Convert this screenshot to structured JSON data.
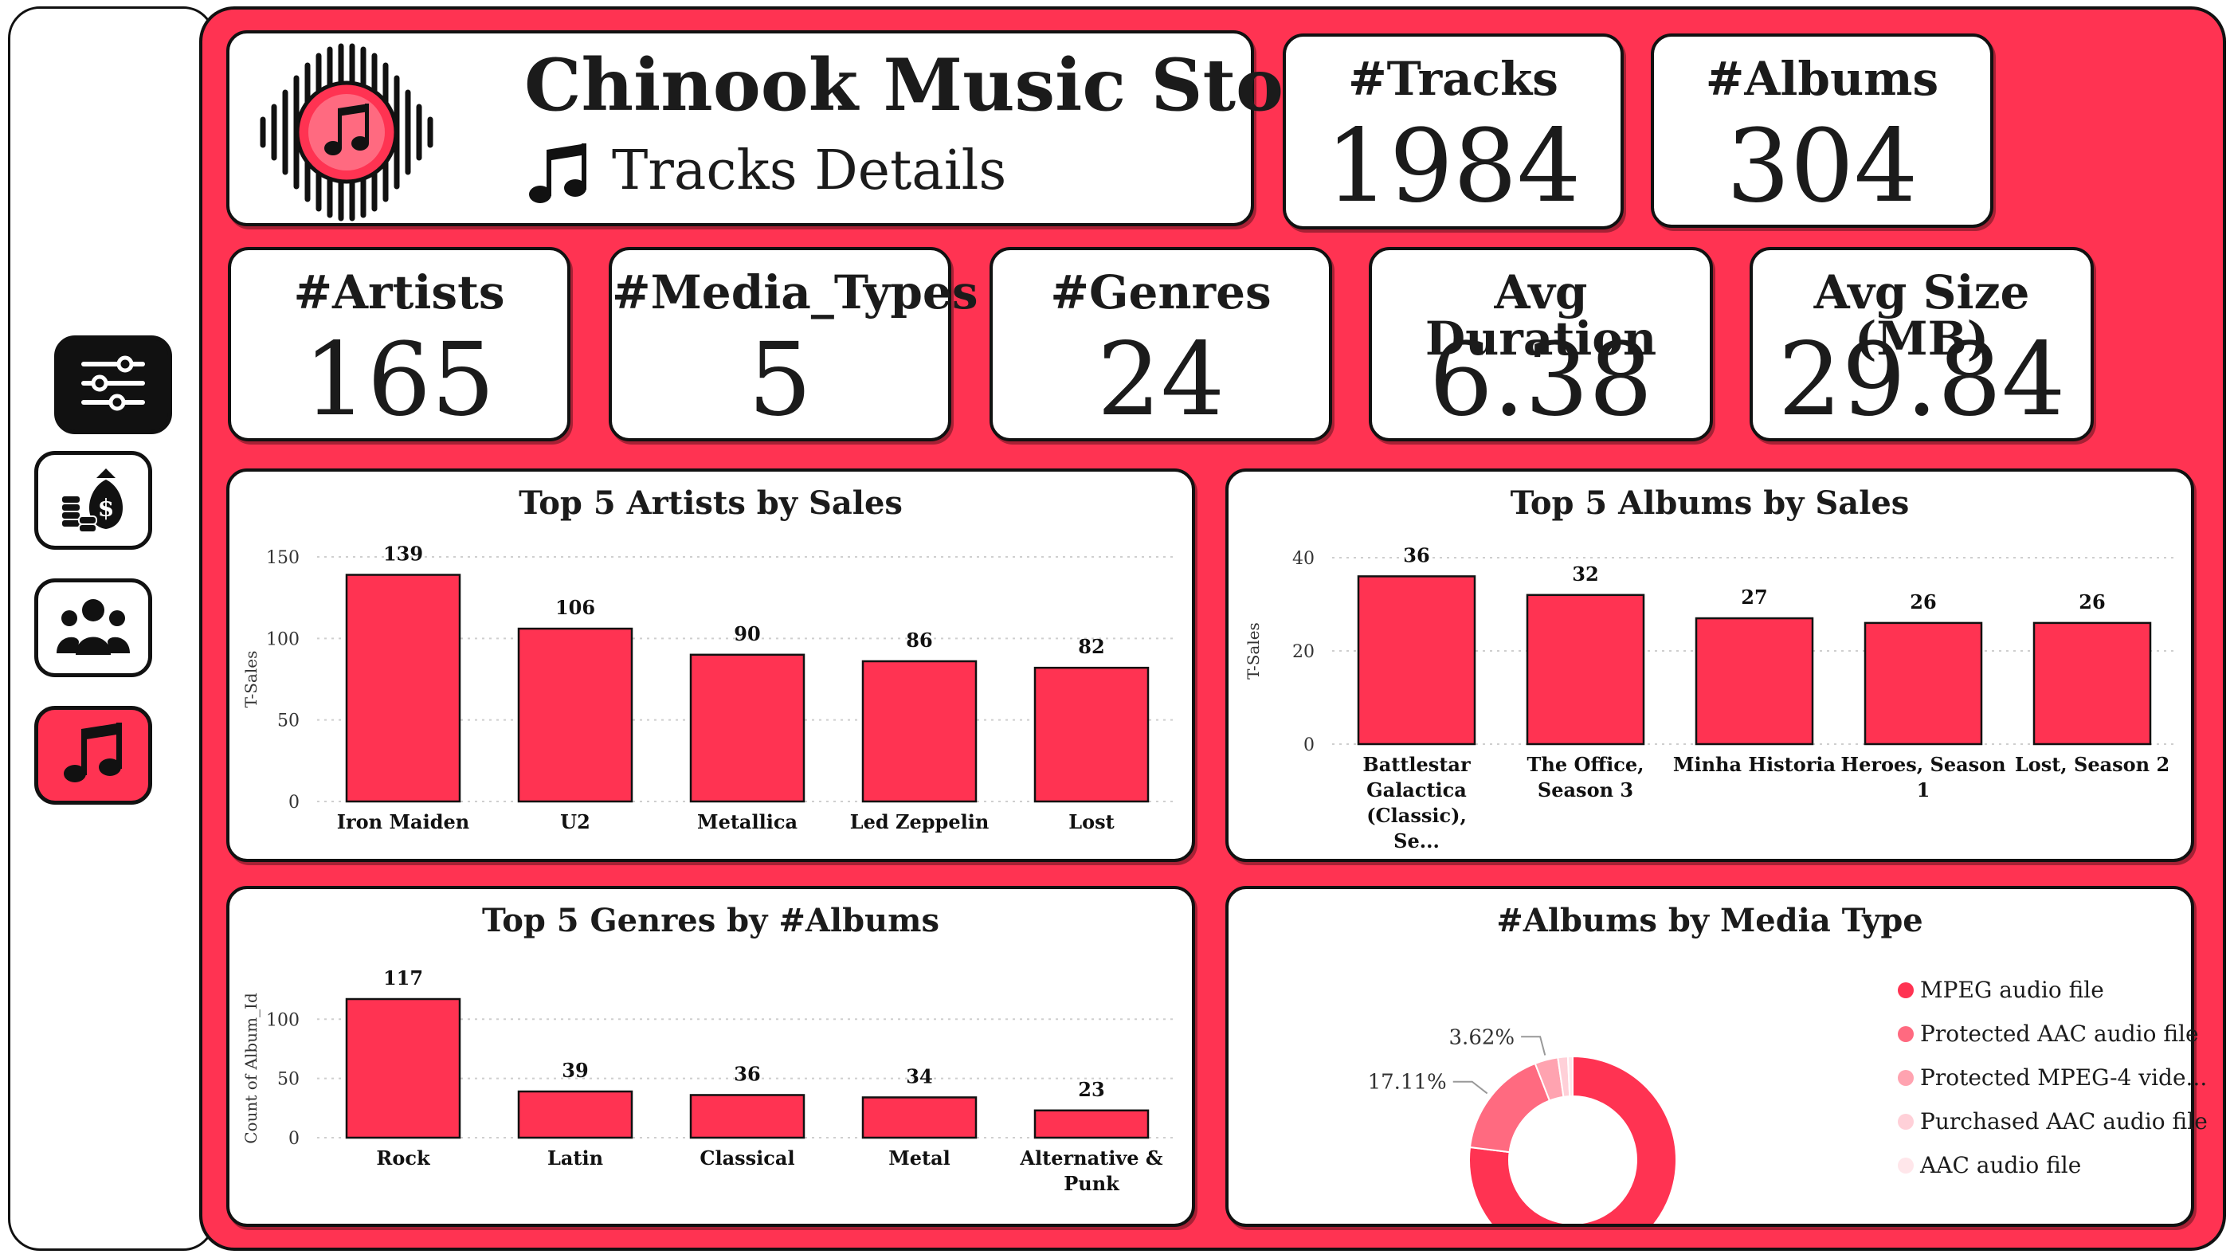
{
  "header": {
    "title": "Chinook Music Store",
    "subtitle": "Tracks Details"
  },
  "nav": [
    {
      "icon": "sliders-icon",
      "active": false
    },
    {
      "icon": "money-bag-icon",
      "active": false
    },
    {
      "icon": "people-icon",
      "active": false
    },
    {
      "icon": "music-note-icon",
      "active": true
    }
  ],
  "kpis": {
    "tracks": {
      "label": "#Tracks",
      "value": "1984"
    },
    "albums": {
      "label": "#Albums",
      "value": "304"
    },
    "artists": {
      "label": "#Artists",
      "value": "165"
    },
    "media_types": {
      "label": "#Media_Types",
      "value": "5"
    },
    "genres": {
      "label": "#Genres",
      "value": "24"
    },
    "avg_duration": {
      "label": "Avg Duration",
      "value": "6.38"
    },
    "avg_size": {
      "label": "Avg Size (MB)",
      "value": "29.84"
    }
  },
  "colors": {
    "accent": "#ff3352",
    "border": "#111111",
    "card": "#ffffff"
  },
  "chart_data": [
    {
      "type": "bar",
      "title": "Top 5 Artists by Sales",
      "ylabel": "T-Sales",
      "xlabel": "",
      "categories": [
        "Iron Maiden",
        "U2",
        "Metallica",
        "Led Zeppelin",
        "Lost"
      ],
      "values": [
        139,
        106,
        90,
        86,
        82
      ],
      "ylim": [
        0,
        150
      ],
      "yticks": [
        0,
        50,
        100,
        150
      ],
      "grid": true
    },
    {
      "type": "bar",
      "title": "Top 5 Albums by Sales",
      "ylabel": "T-Sales",
      "xlabel": "",
      "categories": [
        "Battlestar Galactica (Classic), Se...",
        "The Office, Season 3",
        "Minha Historia",
        "Heroes, Season 1",
        "Lost, Season 2"
      ],
      "values": [
        36,
        32,
        27,
        26,
        26
      ],
      "ylim": [
        0,
        40
      ],
      "yticks": [
        0,
        20,
        40
      ],
      "grid": true
    },
    {
      "type": "bar",
      "title": "Top 5 Genres by #Albums",
      "ylabel": "Count of Album_Id",
      "xlabel": "",
      "categories": [
        "Rock",
        "Latin",
        "Classical",
        "Metal",
        "Alternative & Punk"
      ],
      "values": [
        117,
        39,
        36,
        34,
        23
      ],
      "ylim": [
        0,
        117
      ],
      "yticks": [
        0,
        50,
        100
      ],
      "grid": true
    },
    {
      "type": "pie",
      "title": "#Albums by Media Type",
      "categories": [
        "MPEG audio file",
        "Protected AAC audio file",
        "Protected MPEG-4 vide...",
        "Purchased AAC audio file",
        "AAC audio file"
      ],
      "values": [
        76.97,
        17.11,
        3.62,
        1.55,
        0.75
      ],
      "data_labels": [
        "76.97%",
        "17.11%",
        "3.62%",
        "",
        ""
      ],
      "colors": [
        "#ff3352",
        "#ff6a80",
        "#ffa3b0",
        "#ffd0d8",
        "#ffe6ea"
      ],
      "legend": "right"
    }
  ]
}
